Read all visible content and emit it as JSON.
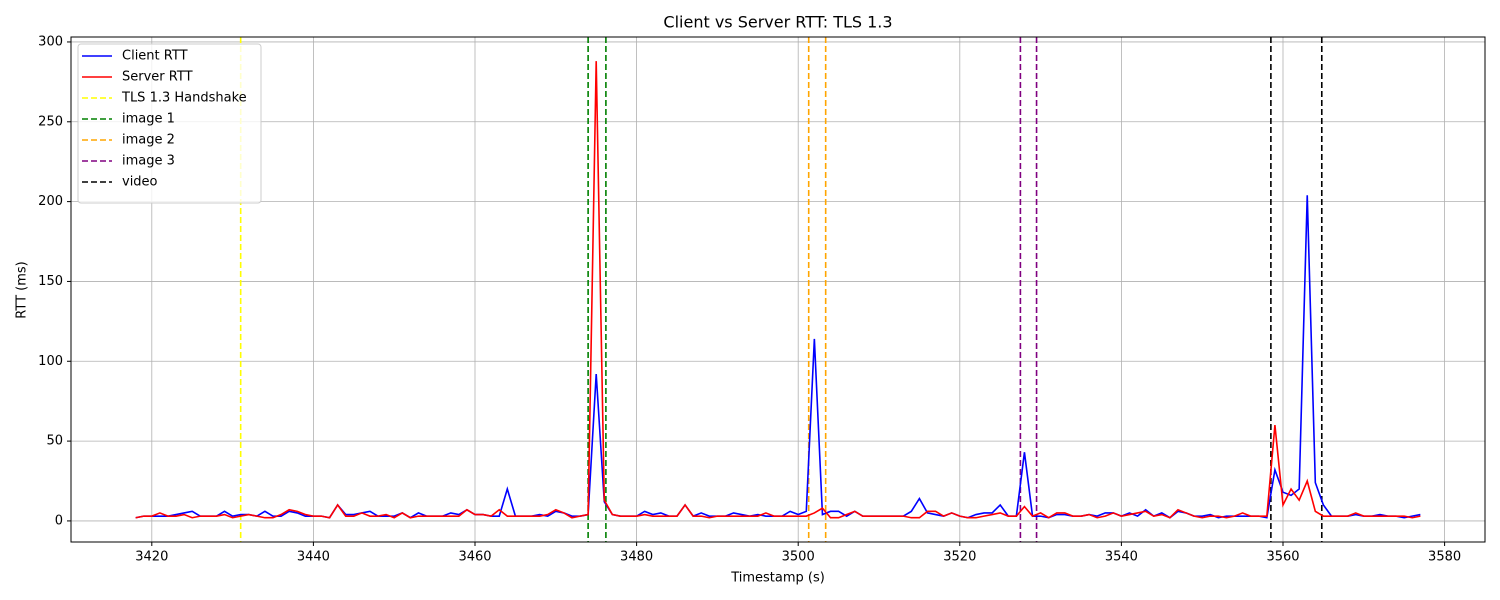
{
  "chart_data": {
    "type": "line",
    "title": "Client vs Server RTT: TLS 1.3",
    "x_label": "Timestamp (s)",
    "y_label": "RTT (ms)",
    "x": [
      3418,
      3419,
      3420,
      3421,
      3422,
      3423,
      3424,
      3425,
      3426,
      3427,
      3428,
      3429,
      3430,
      3431,
      3432,
      3433,
      3434,
      3435,
      3436,
      3437,
      3438,
      3439,
      3440,
      3441,
      3442,
      3443,
      3444,
      3445,
      3446,
      3447,
      3448,
      3449,
      3450,
      3451,
      3452,
      3453,
      3454,
      3455,
      3456,
      3457,
      3458,
      3459,
      3460,
      3461,
      3462,
      3463,
      3464,
      3465,
      3466,
      3467,
      3468,
      3469,
      3470,
      3471,
      3472,
      3473,
      3474,
      3475,
      3476,
      3477,
      3478,
      3479,
      3480,
      3481,
      3482,
      3483,
      3484,
      3485,
      3486,
      3487,
      3488,
      3489,
      3490,
      3491,
      3492,
      3493,
      3494,
      3495,
      3496,
      3497,
      3498,
      3499,
      3500,
      3501,
      3502,
      3503,
      3504,
      3505,
      3506,
      3507,
      3508,
      3509,
      3510,
      3511,
      3512,
      3513,
      3514,
      3515,
      3516,
      3517,
      3518,
      3519,
      3520,
      3521,
      3522,
      3523,
      3524,
      3525,
      3526,
      3527,
      3528,
      3529,
      3530,
      3531,
      3532,
      3533,
      3534,
      3535,
      3536,
      3537,
      3538,
      3539,
      3540,
      3541,
      3542,
      3543,
      3544,
      3545,
      3546,
      3547,
      3548,
      3549,
      3550,
      3551,
      3552,
      3553,
      3554,
      3555,
      3556,
      3557,
      3558,
      3559,
      3560,
      3561,
      3562,
      3563,
      3564,
      3565,
      3566,
      3567,
      3568,
      3569,
      3570,
      3571,
      3572,
      3573,
      3574,
      3575,
      3576,
      3577
    ],
    "series": [
      {
        "name": "Client RTT",
        "color": "#0000ff",
        "values": [
          2,
          3,
          3,
          3,
          3,
          4,
          5,
          6,
          3,
          3,
          3,
          6,
          3,
          4,
          4,
          3,
          6,
          3,
          3,
          6,
          5,
          3,
          3,
          3,
          2,
          10,
          4,
          4,
          5,
          6,
          3,
          3,
          3,
          5,
          2,
          5,
          3,
          3,
          3,
          5,
          4,
          7,
          4,
          4,
          3,
          3,
          20,
          3,
          3,
          3,
          4,
          3,
          6,
          5,
          3,
          3,
          4,
          92,
          12,
          4,
          3,
          3,
          3,
          6,
          4,
          5,
          3,
          3,
          10,
          3,
          5,
          3,
          3,
          3,
          5,
          4,
          3,
          4,
          3,
          3,
          3,
          6,
          4,
          6,
          114,
          4,
          6,
          6,
          3,
          6,
          3,
          3,
          3,
          3,
          3,
          3,
          6,
          14,
          5,
          4,
          3,
          5,
          3,
          2,
          4,
          5,
          5,
          10,
          3,
          3,
          43,
          3,
          3,
          2,
          4,
          4,
          3,
          3,
          4,
          3,
          5,
          5,
          3,
          5,
          3,
          7,
          3,
          5,
          2,
          6,
          5,
          3,
          3,
          4,
          2,
          3,
          3,
          3,
          3,
          3,
          2,
          32,
          18,
          16,
          20,
          204,
          24,
          10,
          3,
          3,
          3,
          4,
          3,
          3,
          4,
          3,
          3,
          2,
          3,
          4
        ]
      },
      {
        "name": "Server RTT",
        "color": "#ff0000",
        "values": [
          2,
          3,
          3,
          5,
          3,
          3,
          4,
          2,
          3,
          3,
          3,
          4,
          2,
          3,
          4,
          3,
          2,
          2,
          4,
          7,
          6,
          4,
          3,
          3,
          2,
          10,
          3,
          3,
          5,
          3,
          3,
          4,
          2,
          5,
          2,
          3,
          3,
          3,
          3,
          3,
          3,
          7,
          4,
          4,
          3,
          7,
          3,
          3,
          3,
          3,
          3,
          4,
          7,
          5,
          2,
          3,
          4,
          288,
          13,
          4,
          3,
          3,
          3,
          4,
          3,
          3,
          3,
          3,
          10,
          3,
          3,
          2,
          3,
          3,
          3,
          3,
          3,
          3,
          5,
          3,
          3,
          3,
          3,
          3,
          5,
          8,
          2,
          2,
          4,
          6,
          3,
          3,
          3,
          3,
          3,
          3,
          2,
          2,
          6,
          6,
          3,
          5,
          3,
          2,
          2,
          3,
          4,
          5,
          3,
          3,
          9,
          3,
          5,
          2,
          5,
          5,
          3,
          3,
          4,
          2,
          3,
          5,
          3,
          4,
          5,
          6,
          3,
          4,
          2,
          7,
          5,
          3,
          2,
          3,
          3,
          2,
          3,
          5,
          3,
          3,
          3,
          60,
          10,
          20,
          13,
          25,
          6,
          3,
          3,
          3,
          3,
          5,
          3,
          3,
          3,
          3,
          3,
          3,
          2,
          3
        ]
      }
    ],
    "vlines": [
      {
        "name": "TLS 1.3 Handshake",
        "color": "#ffff00",
        "x": [
          3431.0
        ]
      },
      {
        "name": "image 1",
        "color": "#008000",
        "x": [
          3474.0,
          3476.2
        ]
      },
      {
        "name": "image 2",
        "color": "#ffa500",
        "x": [
          3501.3,
          3503.4
        ]
      },
      {
        "name": "image 3",
        "color": "#800080",
        "x": [
          3527.5,
          3529.5
        ]
      },
      {
        "name": "video",
        "color": "#000000",
        "x": [
          3558.5,
          3564.8
        ]
      }
    ],
    "xlim": [
      3410,
      3585
    ],
    "ylim": [
      -13.2,
      303.1
    ],
    "xticks": [
      3420,
      3440,
      3460,
      3480,
      3500,
      3520,
      3540,
      3560,
      3580
    ],
    "yticks": [
      0,
      50,
      100,
      150,
      200,
      250,
      300
    ],
    "grid": true,
    "legend": "upper left"
  }
}
